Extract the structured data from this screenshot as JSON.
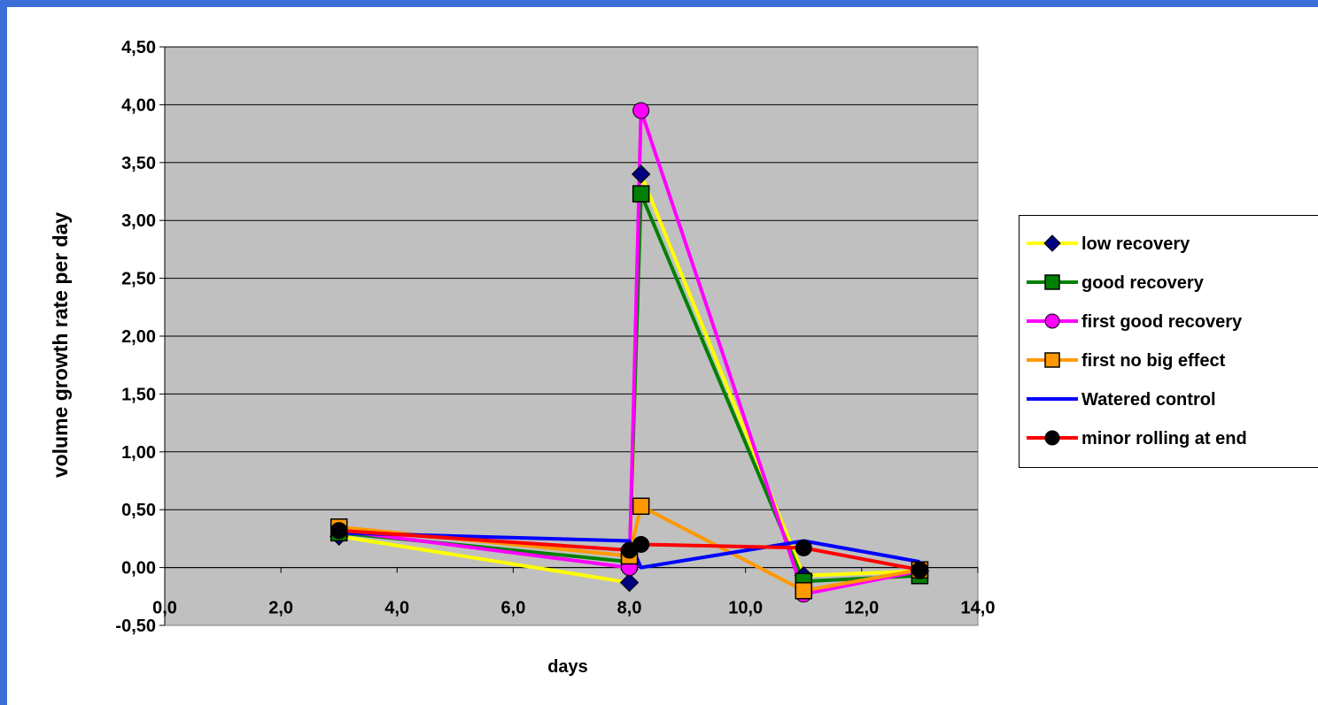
{
  "chart_data": {
    "type": "line",
    "title": "",
    "xlabel": "days",
    "ylabel": "volume growth rate per day",
    "xlim": [
      0,
      14
    ],
    "ylim": [
      -0.5,
      4.5
    ],
    "x_ticks": [
      "0,0",
      "2,0",
      "4,0",
      "6,0",
      "8,0",
      "10,0",
      "12,0",
      "14,0"
    ],
    "y_ticks": [
      "-0,50",
      "0,00",
      "0,50",
      "1,00",
      "1,50",
      "2,00",
      "2,50",
      "3,00",
      "3,50",
      "4,00",
      "4,50"
    ],
    "grid": "horizontal",
    "legend_position": "right",
    "plot_background": "#c0c0c0",
    "series": [
      {
        "name": "low recovery",
        "line_color": "#ffff00",
        "marker": "diamond",
        "marker_fill": "#000080",
        "x": [
          3,
          8,
          8.2,
          11,
          13
        ],
        "y": [
          0.27,
          -0.13,
          3.4,
          -0.07,
          -0.03
        ]
      },
      {
        "name": "good recovery",
        "line_color": "#008000",
        "marker": "square",
        "marker_fill": "#008000",
        "x": [
          3,
          8,
          8.2,
          11,
          13
        ],
        "y": [
          0.3,
          0.05,
          3.23,
          -0.12,
          -0.07
        ]
      },
      {
        "name": "first good recovery",
        "line_color": "#ff00ff",
        "marker": "circle",
        "marker_fill": "#ff00ff",
        "x": [
          3,
          8,
          8.2,
          11,
          13
        ],
        "y": [
          0.32,
          0.0,
          3.95,
          -0.23,
          -0.03
        ]
      },
      {
        "name": "first no big effect",
        "line_color": "#ff9900",
        "marker": "square",
        "marker_fill": "#ff9900",
        "x": [
          3,
          8,
          8.2,
          11,
          13
        ],
        "y": [
          0.35,
          0.1,
          0.53,
          -0.2,
          -0.02
        ]
      },
      {
        "name": "Watered control",
        "line_color": "#0000ff",
        "marker": "none",
        "marker_fill": "#0000ff",
        "x": [
          3,
          8,
          8.2,
          11,
          13
        ],
        "y": [
          0.3,
          0.23,
          0.0,
          0.23,
          0.05
        ]
      },
      {
        "name": "minor rolling at end",
        "line_color": "#ff0000",
        "marker": "circle",
        "marker_fill": "#000000",
        "x": [
          3,
          8,
          8.2,
          11,
          13
        ],
        "y": [
          0.32,
          0.15,
          0.2,
          0.17,
          -0.02
        ]
      }
    ]
  }
}
